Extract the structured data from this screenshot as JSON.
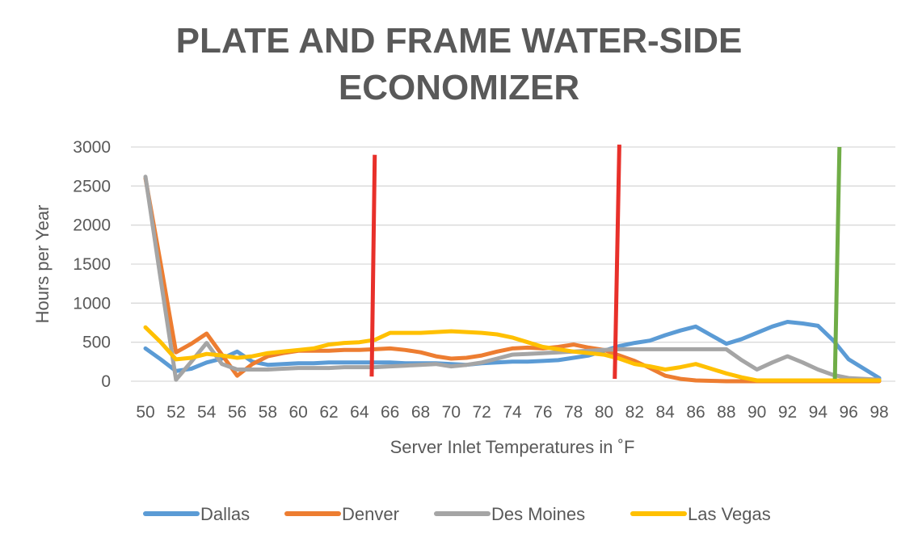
{
  "chart_data": {
    "type": "line",
    "title_lines": [
      "PLATE AND FRAME WATER-SIDE",
      "ECONOMIZER"
    ],
    "xlabel": "Server Inlet Temperatures in ˚F",
    "ylabel": "Hours per Year",
    "x": [
      50,
      51,
      52,
      53,
      54,
      55,
      56,
      57,
      58,
      59,
      60,
      61,
      62,
      63,
      64,
      65,
      66,
      67,
      68,
      69,
      70,
      71,
      72,
      73,
      74,
      75,
      76,
      77,
      78,
      79,
      80,
      81,
      82,
      83,
      84,
      85,
      86,
      87,
      88,
      89,
      90,
      91,
      92,
      93,
      94,
      95,
      96,
      97,
      98
    ],
    "x_tick_labels": [
      "50",
      "52",
      "54",
      "56",
      "58",
      "60",
      "62",
      "64",
      "66",
      "68",
      "70",
      "72",
      "74",
      "76",
      "78",
      "80",
      "82",
      "84",
      "86",
      "88",
      "90",
      "92",
      "94",
      "96",
      "98"
    ],
    "ylim": [
      0,
      3000
    ],
    "y_ticks": [
      0,
      500,
      1000,
      1500,
      2000,
      2500,
      3000
    ],
    "grid": "horizontal",
    "legend_position": "bottom",
    "series": [
      {
        "name": "Dallas",
        "color": "#5B9BD5",
        "values": [
          420,
          280,
          130,
          160,
          240,
          290,
          380,
          250,
          210,
          220,
          230,
          230,
          240,
          240,
          240,
          240,
          240,
          230,
          230,
          230,
          220,
          210,
          230,
          240,
          250,
          250,
          260,
          270,
          300,
          330,
          390,
          450,
          490,
          520,
          590,
          650,
          700,
          590,
          480,
          540,
          620,
          700,
          760,
          740,
          710,
          520,
          280,
          160,
          40
        ]
      },
      {
        "name": "Denver",
        "color": "#ED7D31",
        "values": [
          2600,
          1500,
          370,
          480,
          610,
          340,
          70,
          220,
          320,
          360,
          390,
          390,
          390,
          400,
          400,
          410,
          420,
          400,
          370,
          320,
          290,
          300,
          330,
          380,
          420,
          430,
          420,
          440,
          470,
          430,
          400,
          330,
          260,
          170,
          70,
          30,
          10,
          5,
          0,
          0,
          0,
          0,
          0,
          0,
          0,
          0,
          0,
          0,
          0
        ]
      },
      {
        "name": "Des Moines",
        "color": "#A5A5A5",
        "values": [
          2620,
          1300,
          20,
          250,
          490,
          220,
          150,
          150,
          150,
          160,
          170,
          170,
          170,
          180,
          180,
          180,
          190,
          200,
          210,
          220,
          190,
          210,
          240,
          290,
          340,
          350,
          360,
          370,
          380,
          390,
          400,
          410,
          410,
          410,
          410,
          410,
          410,
          410,
          410,
          270,
          150,
          240,
          320,
          240,
          150,
          80,
          40,
          30,
          20
        ]
      },
      {
        "name": "Las Vegas",
        "color": "#FFC000",
        "values": [
          690,
          500,
          280,
          300,
          350,
          330,
          300,
          320,
          360,
          380,
          400,
          420,
          470,
          490,
          500,
          530,
          620,
          620,
          620,
          630,
          640,
          630,
          620,
          600,
          560,
          500,
          440,
          410,
          380,
          360,
          340,
          290,
          220,
          190,
          150,
          180,
          220,
          160,
          100,
          50,
          10,
          10,
          10,
          10,
          10,
          10,
          10,
          10,
          10
        ]
      }
    ],
    "annotation_lines": [
      {
        "color": "#E8302A",
        "x_top": 65,
        "y_top": 2900,
        "x_bottom": 64.8,
        "y_bottom": 60
      },
      {
        "color": "#E8302A",
        "x_top": 81,
        "y_top": 3030,
        "x_bottom": 80.7,
        "y_bottom": 30
      },
      {
        "color": "#70AD47",
        "x_top": 95.4,
        "y_top": 3000,
        "x_bottom": 95.1,
        "y_bottom": 30
      }
    ]
  }
}
